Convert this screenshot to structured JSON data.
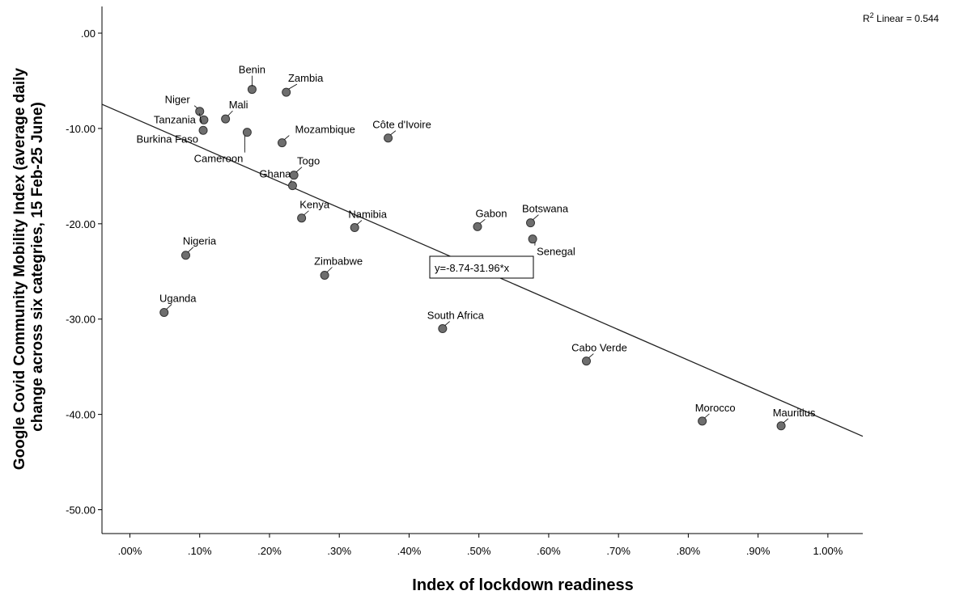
{
  "r2_note": {
    "prefix": "R",
    "sup": "2",
    "text": " Linear = 0.544"
  },
  "equation_label": "y=-8.74-31.96*x",
  "chart_data": {
    "type": "scatter",
    "title": "",
    "xlabel": "Index of lockdown readiness",
    "ylabel_lines": [
      "Google Covid Community Mobility Index (average daily",
      "change across six categries, 15 Feb-25 June)"
    ],
    "xlim": [
      -0.04,
      1.05
    ],
    "ylim": [
      -52.5,
      2.8
    ],
    "x_ticks": [
      0,
      0.1,
      0.2,
      0.3,
      0.4,
      0.5,
      0.6,
      0.7,
      0.8,
      0.9,
      1.0
    ],
    "x_tick_labels": [
      ".00%",
      ".10%",
      ".20%",
      ".30%",
      ".40%",
      ".50%",
      ".60%",
      ".70%",
      ".80%",
      ".90%",
      "1.00%"
    ],
    "y_ticks": [
      0,
      -10,
      -20,
      -30,
      -40,
      -50
    ],
    "y_tick_labels": [
      ".00",
      "-10.00",
      "-20.00",
      "-30.00",
      "-40.00",
      "-50.00"
    ],
    "grid": false,
    "point_color": "#6e6e6e",
    "fit_line": {
      "intercept": -8.74,
      "slope": -31.96,
      "r2": 0.544
    },
    "points": [
      {
        "label": "Benin",
        "x": 0.175,
        "y": -5.9
      },
      {
        "label": "Zambia",
        "x": 0.224,
        "y": -6.2
      },
      {
        "label": "Niger",
        "x": 0.1,
        "y": -8.2
      },
      {
        "label": "Mali",
        "x": 0.137,
        "y": -9.0
      },
      {
        "label": "Tanzania",
        "x": 0.106,
        "y": -9.1
      },
      {
        "label": "Burkina Faso",
        "x": 0.105,
        "y": -10.2
      },
      {
        "label": "Cameroon",
        "x": 0.168,
        "y": -10.4
      },
      {
        "label": "Mozambique",
        "x": 0.218,
        "y": -11.5
      },
      {
        "label": "Côte d'Ivoire",
        "x": 0.37,
        "y": -11.0
      },
      {
        "label": "Togo",
        "x": 0.235,
        "y": -14.9
      },
      {
        "label": "Ghana",
        "x": 0.233,
        "y": -16.0
      },
      {
        "label": "Kenya",
        "x": 0.246,
        "y": -19.4
      },
      {
        "label": "Namibia",
        "x": 0.322,
        "y": -20.4
      },
      {
        "label": "Gabon",
        "x": 0.498,
        "y": -20.3
      },
      {
        "label": "Botswana",
        "x": 0.574,
        "y": -19.9
      },
      {
        "label": "Senegal",
        "x": 0.577,
        "y": -21.6
      },
      {
        "label": "Nigeria",
        "x": 0.08,
        "y": -23.3
      },
      {
        "label": "Zimbabwe",
        "x": 0.279,
        "y": -25.4
      },
      {
        "label": "Uganda",
        "x": 0.049,
        "y": -29.3
      },
      {
        "label": "South Africa",
        "x": 0.448,
        "y": -31.0
      },
      {
        "label": "Cabo Verde",
        "x": 0.654,
        "y": -34.4
      },
      {
        "label": "Morocco",
        "x": 0.82,
        "y": -40.7
      },
      {
        "label": "Mauritius",
        "x": 0.933,
        "y": -41.2
      }
    ]
  }
}
